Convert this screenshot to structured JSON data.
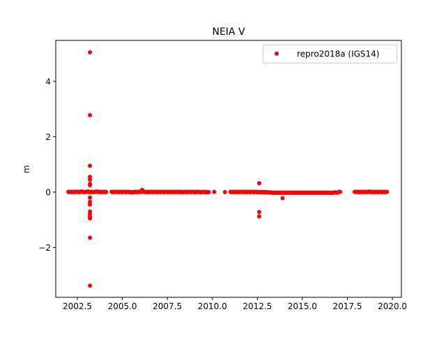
{
  "chart_data": {
    "type": "scatter",
    "title": "NEIA V",
    "xlabel": "",
    "ylabel": "m",
    "xlim": [
      2001.3,
      2020.5
    ],
    "ylim": [
      -3.8,
      5.48
    ],
    "xticks": [
      "2002.5",
      "2005.0",
      "2007.5",
      "2010.0",
      "2012.5",
      "2015.0",
      "2017.5",
      "2020.0"
    ],
    "yticks": [
      "−2",
      "0",
      "2",
      "4"
    ],
    "grid": false,
    "legend_position": "top-right",
    "series": [
      {
        "name": "repro2018a (IGS14)",
        "color": "#ff0000",
        "x": [
          2002.0,
          2002.1,
          2002.2,
          2002.3,
          2002.4,
          2002.5,
          2002.6,
          2002.7,
          2002.8,
          2002.9,
          2003.0,
          2003.1,
          2003.2,
          2003.3,
          2003.4,
          2003.5,
          2003.6,
          2003.7,
          2003.8,
          2003.9,
          2004.0,
          2004.1,
          2004.4,
          2004.5,
          2004.6,
          2004.7,
          2004.8,
          2004.9,
          2005.0,
          2005.1,
          2005.2,
          2005.3,
          2005.4,
          2005.5,
          2005.6,
          2005.7,
          2005.8,
          2005.9,
          2006.0,
          2006.1,
          2006.2,
          2006.3,
          2006.4,
          2006.5,
          2006.6,
          2006.7,
          2006.8,
          2006.9,
          2007.0,
          2007.1,
          2007.2,
          2007.3,
          2007.4,
          2007.5,
          2007.6,
          2007.7,
          2007.8,
          2007.9,
          2008.0,
          2008.1,
          2008.2,
          2008.3,
          2008.4,
          2008.5,
          2008.6,
          2008.7,
          2008.8,
          2008.9,
          2009.0,
          2009.1,
          2009.2,
          2009.3,
          2009.4,
          2009.5,
          2009.6,
          2009.7,
          2009.8,
          2010.1,
          2010.7,
          2011.0,
          2011.1,
          2011.2,
          2011.3,
          2011.4,
          2011.5,
          2011.6,
          2011.7,
          2011.8,
          2011.9,
          2012.0,
          2012.1,
          2012.2,
          2012.3,
          2012.4,
          2012.5,
          2012.6,
          2012.7,
          2012.8,
          2012.9,
          2013.0,
          2013.1,
          2013.2,
          2013.3,
          2013.4,
          2013.5,
          2013.6,
          2013.7,
          2013.8,
          2013.9,
          2014.0,
          2014.1,
          2014.2,
          2014.3,
          2014.4,
          2014.5,
          2014.6,
          2014.7,
          2014.8,
          2014.9,
          2015.0,
          2015.1,
          2015.2,
          2015.3,
          2015.4,
          2015.5,
          2015.6,
          2015.7,
          2015.8,
          2015.9,
          2016.0,
          2016.1,
          2016.2,
          2016.3,
          2016.4,
          2016.5,
          2016.6,
          2016.7,
          2016.8,
          2016.9,
          2017.0,
          2017.1,
          2017.9,
          2018.0,
          2018.1,
          2018.2,
          2018.3,
          2018.4,
          2018.5,
          2018.6,
          2018.7,
          2018.8,
          2018.9,
          2019.0,
          2019.1,
          2019.2,
          2019.3,
          2019.4,
          2019.5,
          2019.6,
          2019.7,
          2003.2,
          2003.2,
          2003.2,
          2003.2,
          2003.2,
          2003.2,
          2003.2,
          2003.2,
          2003.2,
          2003.2,
          2003.2,
          2003.2,
          2003.2,
          2003.2,
          2003.2,
          2003.2,
          2012.6,
          2012.6,
          2012.6,
          2013.9,
          2006.1
        ],
        "y": [
          0.01,
          0.0,
          0.01,
          0.0,
          0.01,
          0.01,
          0.0,
          0.02,
          0.01,
          0.0,
          0.01,
          0.02,
          0.0,
          0.01,
          0.0,
          0.01,
          0.02,
          0.0,
          0.01,
          0.0,
          0.01,
          0.0,
          0.01,
          0.0,
          0.01,
          0.01,
          0.0,
          0.01,
          0.0,
          0.01,
          0.0,
          0.01,
          0.0,
          0.0,
          -0.01,
          0.01,
          0.0,
          0.01,
          0.0,
          0.03,
          0.01,
          0.0,
          0.01,
          0.0,
          0.01,
          0.0,
          0.01,
          0.0,
          0.01,
          0.0,
          0.01,
          0.0,
          0.01,
          0.0,
          0.01,
          0.0,
          0.01,
          0.0,
          0.01,
          0.0,
          0.01,
          0.0,
          0.0,
          0.01,
          0.0,
          0.01,
          0.0,
          0.01,
          0.0,
          0.0,
          0.01,
          0.0,
          0.0,
          0.01,
          0.0,
          0.0,
          0.0,
          0.01,
          0.0,
          0.01,
          0.0,
          0.01,
          0.0,
          0.01,
          0.0,
          0.01,
          0.0,
          0.01,
          0.0,
          0.01,
          0.0,
          0.01,
          0.0,
          0.01,
          0.0,
          0.0,
          0.0,
          0.0,
          -0.01,
          0.0,
          -0.01,
          -0.01,
          -0.02,
          -0.02,
          -0.02,
          -0.02,
          -0.02,
          -0.02,
          -0.02,
          -0.02,
          -0.02,
          -0.02,
          -0.02,
          -0.02,
          -0.02,
          -0.02,
          -0.02,
          -0.02,
          -0.02,
          -0.02,
          -0.02,
          -0.02,
          -0.02,
          -0.02,
          -0.02,
          -0.02,
          -0.02,
          -0.02,
          -0.02,
          -0.02,
          -0.02,
          -0.02,
          -0.02,
          -0.02,
          -0.02,
          -0.03,
          -0.02,
          -0.01,
          -0.02,
          0.0,
          0.01,
          0.01,
          0.0,
          0.01,
          0.0,
          0.01,
          0.0,
          0.01,
          0.0,
          0.02,
          0.0,
          0.01,
          0.0,
          0.01,
          0.0,
          0.01,
          0.0,
          0.01,
          0.0,
          0.01,
          5.05,
          2.78,
          0.95,
          0.55,
          0.45,
          0.3,
          0.25,
          -0.2,
          -0.35,
          -0.45,
          -0.7,
          -0.8,
          -0.9,
          -0.95,
          -1.65,
          -3.38,
          0.32,
          -0.72,
          -0.88,
          -0.22,
          0.08
        ]
      }
    ]
  }
}
